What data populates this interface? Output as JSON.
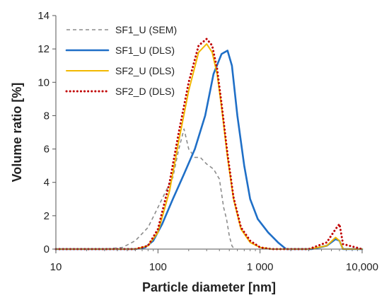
{
  "chart_data": {
    "type": "line",
    "xlabel": "Particle diameter [nm]",
    "ylabel": "Volume ratio [%]",
    "xscale": "log",
    "xlim": [
      10,
      10000
    ],
    "ylim": [
      0,
      14
    ],
    "x_tick_values": [
      10,
      100,
      1000,
      10000
    ],
    "x_tick_labels": [
      "10",
      "100",
      "1 000",
      "10,000"
    ],
    "y_ticks": [
      0,
      2,
      4,
      6,
      8,
      10,
      12,
      14
    ],
    "grid": false,
    "legend_position": "top-left",
    "series": [
      {
        "name": "SF1_U (SEM)",
        "color": "#8c8c8c",
        "style": "dashed",
        "x": [
          10,
          30,
          45,
          60,
          80,
          100,
          120,
          140,
          160,
          180,
          200,
          230,
          260,
          300,
          350,
          400,
          440,
          470,
          500,
          530,
          560
        ],
        "y": [
          0,
          0,
          0.1,
          0.5,
          1.3,
          2.5,
          3.5,
          4.3,
          6.0,
          7.2,
          6.0,
          5.5,
          5.5,
          5.1,
          4.8,
          4.2,
          2.5,
          1.8,
          0.8,
          0.2,
          0
        ]
      },
      {
        "name": "SF1_U (DLS)",
        "color": "#1f6fc7",
        "style": "solid",
        "x": [
          10,
          60,
          75,
          90,
          110,
          140,
          180,
          230,
          290,
          350,
          420,
          480,
          530,
          600,
          700,
          800,
          950,
          1200,
          1500,
          1800,
          3200,
          4500,
          5500,
          6000,
          6500,
          10000
        ],
        "y": [
          0,
          0,
          0.1,
          0.5,
          1.5,
          3.0,
          4.5,
          6.0,
          8.0,
          10.5,
          11.7,
          11.9,
          11.0,
          8.0,
          5.0,
          3.0,
          1.8,
          1.0,
          0.4,
          0,
          0,
          0.2,
          0.6,
          0.5,
          0,
          0
        ]
      },
      {
        "name": "SF2_U (DLS)",
        "color": "#f2b800",
        "style": "solid",
        "x": [
          10,
          60,
          80,
          100,
          130,
          160,
          200,
          250,
          300,
          340,
          380,
          420,
          480,
          550,
          650,
          800,
          1000,
          1300,
          1700,
          3000,
          4500,
          5500,
          6000,
          6500,
          10000
        ],
        "y": [
          0,
          0,
          0.2,
          1.0,
          3.5,
          6.5,
          9.5,
          11.8,
          12.3,
          11.8,
          10.5,
          8.5,
          5.5,
          3.0,
          1.2,
          0.4,
          0.1,
          0,
          0,
          0,
          0.2,
          0.7,
          0.5,
          0,
          0
        ]
      },
      {
        "name": "SF2_D (DLS)",
        "color": "#c00000",
        "style": "dotted",
        "x": [
          10,
          60,
          80,
          100,
          130,
          160,
          200,
          250,
          300,
          340,
          380,
          420,
          480,
          550,
          650,
          800,
          1000,
          1300,
          1700,
          3000,
          4500,
          5500,
          6000,
          6500,
          10000
        ],
        "y": [
          0,
          0,
          0.2,
          1.2,
          4.0,
          7.0,
          10.0,
          12.2,
          12.6,
          12.2,
          10.8,
          8.7,
          5.7,
          3.1,
          1.3,
          0.5,
          0.1,
          0,
          0,
          0,
          0.4,
          1.2,
          1.5,
          0.3,
          0
        ]
      }
    ]
  }
}
